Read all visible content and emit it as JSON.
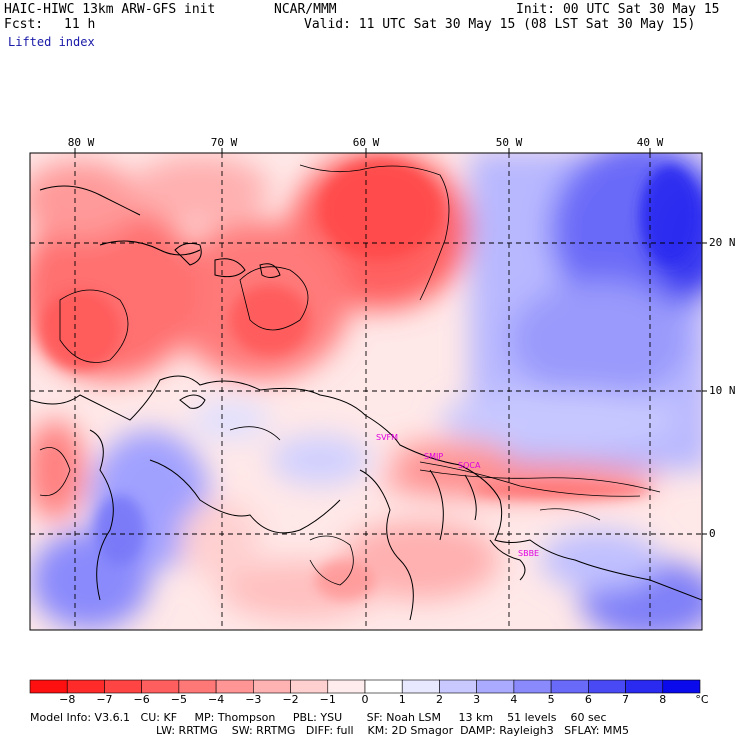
{
  "header": {
    "model": "HAIC-HIWC 13km ARW-GFS init",
    "center": "NCAR/MMM",
    "init": "Init: 00 UTC Sat 30 May 15",
    "fcst_label": "Fcst:",
    "fcst_value": "11 h",
    "valid": "Valid: 11 UTC Sat 30 May 15 (08 LST Sat 30 May 15)",
    "field": "Lifted index"
  },
  "axes": {
    "lon_labels": [
      "80 W",
      "70 W",
      "60 W",
      "50 W",
      "40 W"
    ],
    "lat_labels": [
      "20 N",
      "10 N",
      "0"
    ]
  },
  "stations": [
    "SVFM",
    "SMJP",
    "SOCA",
    "SBBE"
  ],
  "colorbar": {
    "unit": "°C",
    "labels": [
      "−8",
      "−7",
      "−6",
      "−5",
      "−4",
      "−3",
      "−2",
      "−1",
      "0",
      "1",
      "2",
      "3",
      "4",
      "5",
      "6",
      "7",
      "8"
    ],
    "colors": [
      "#ff1010",
      "#ff2a2a",
      "#ff4444",
      "#ff5e5e",
      "#ff7878",
      "#ff9595",
      "#ffb2b2",
      "#ffd0d0",
      "#ffeded",
      "#ffffff",
      "#e8e8ff",
      "#c9c9ff",
      "#aaaaff",
      "#8a8afc",
      "#6a6af8",
      "#4a4af4",
      "#2a2af0",
      "#0a0aec"
    ]
  },
  "footer": {
    "line1": "Model Info: V3.6.1   CU: KF     MP: Thompson     PBL: YSU       SF: Noah LSM     13 km    51 levels    60 sec",
    "line2": "LW: RRTMG    SW: RRTMG   DIFF: full    KM: 2D Smagor  DAMP: Rayleigh3   SFLAY: MM5"
  }
}
